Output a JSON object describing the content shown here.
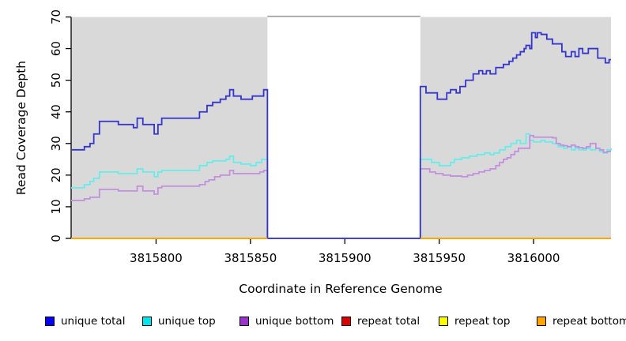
{
  "chart_data": {
    "type": "line",
    "title": "",
    "xlabel": "Coordinate in Reference Genome",
    "ylabel": "Read Coverage Depth",
    "xlim": [
      3815755,
      3816041
    ],
    "ylim": [
      0,
      70
    ],
    "x_ticks": [
      3815800,
      3815850,
      3815900,
      3815950,
      3816000
    ],
    "y_ticks": [
      0,
      10,
      20,
      30,
      40,
      50,
      60,
      70
    ],
    "grid": false,
    "plot_bg_color": "#D9D9D9",
    "gap_top_line_color": "#9C9C9C",
    "shaded_regions": [
      [
        3815755,
        3815859
      ],
      [
        3815940,
        3816041
      ]
    ],
    "gap_region": {
      "from": 3815859,
      "to": 3815940
    },
    "legend_position": "bottom",
    "legend": [
      {
        "label": "unique total",
        "color": "#0000EE"
      },
      {
        "label": "unique top",
        "color": "#00E5EE"
      },
      {
        "label": "unique bottom",
        "color": "#9933CC"
      },
      {
        "label": "repeat total",
        "color": "#DD0000"
      },
      {
        "label": "repeat top",
        "color": "#FFFF00"
      },
      {
        "label": "repeat bottom",
        "color": "#FFA500"
      }
    ],
    "series": [
      {
        "name": "repeat total",
        "line_color": "#DD0000",
        "width": 1.8,
        "segments": [
          [
            [
              3815755,
              0
            ],
            [
              3815859,
              0
            ]
          ],
          [
            [
              3815940,
              0
            ],
            [
              3816041,
              0
            ]
          ]
        ]
      },
      {
        "name": "repeat top",
        "line_color": "#FFFF00",
        "width": 1.8,
        "segments": [
          [
            [
              3815755,
              0
            ],
            [
              3815859,
              0
            ]
          ],
          [
            [
              3815940,
              0
            ],
            [
              3816041,
              0
            ]
          ]
        ]
      },
      {
        "name": "unique top",
        "line_color": "#66EDEA",
        "width": 1.8,
        "segments": [
          [
            [
              3815755,
              16
            ],
            [
              3815762,
              17
            ],
            [
              3815765,
              18
            ],
            [
              3815767,
              19
            ],
            [
              3815770,
              21
            ],
            [
              3815780,
              20.5
            ],
            [
              3815790,
              22
            ],
            [
              3815793,
              21
            ],
            [
              3815799,
              19.5
            ],
            [
              3815801,
              21
            ],
            [
              3815803,
              21.5
            ],
            [
              3815823,
              23
            ],
            [
              3815827,
              24
            ],
            [
              3815830,
              24.5
            ],
            [
              3815837,
              25
            ],
            [
              3815839,
              26
            ],
            [
              3815841,
              24
            ],
            [
              3815845,
              23.5
            ],
            [
              3815850,
              23
            ],
            [
              3815853,
              24
            ],
            [
              3815856,
              25
            ],
            [
              3815859,
              0
            ],
            [
              3815940,
              25
            ],
            [
              3815946,
              24
            ],
            [
              3815950,
              23
            ],
            [
              3815956,
              24
            ],
            [
              3815958,
              25
            ],
            [
              3815962,
              25.5
            ],
            [
              3815966,
              26
            ],
            [
              3815970,
              26.5
            ],
            [
              3815974,
              27
            ],
            [
              3815977,
              26.5
            ],
            [
              3815979,
              27
            ],
            [
              3815982,
              28
            ],
            [
              3815985,
              29
            ],
            [
              3815988,
              30
            ],
            [
              3815991,
              31
            ],
            [
              3815993,
              30
            ],
            [
              3815996,
              33
            ],
            [
              3815998,
              31
            ],
            [
              3816000,
              30.5
            ],
            [
              3816004,
              31
            ],
            [
              3816006,
              30.5
            ],
            [
              3816010,
              30
            ],
            [
              3816013,
              29
            ],
            [
              3816016,
              28.5
            ],
            [
              3816018,
              29
            ],
            [
              3816020,
              28
            ],
            [
              3816022,
              28.5
            ],
            [
              3816024,
              28
            ],
            [
              3816028,
              28.5
            ],
            [
              3816030,
              28
            ],
            [
              3816033,
              28.5
            ],
            [
              3816035,
              27.5
            ],
            [
              3816037,
              27
            ],
            [
              3816039,
              28
            ],
            [
              3816041,
              28.5
            ]
          ]
        ]
      },
      {
        "name": "unique bottom",
        "line_color": "#C38FDF",
        "width": 1.8,
        "segments": [
          [
            [
              3815755,
              12
            ],
            [
              3815762,
              12.5
            ],
            [
              3815765,
              13
            ],
            [
              3815770,
              15.5
            ],
            [
              3815780,
              15
            ],
            [
              3815790,
              16.5
            ],
            [
              3815793,
              15
            ],
            [
              3815799,
              14
            ],
            [
              3815801,
              16
            ],
            [
              3815803,
              16.5
            ],
            [
              3815823,
              17
            ],
            [
              3815826,
              18
            ],
            [
              3815828,
              18.5
            ],
            [
              3815831,
              19.5
            ],
            [
              3815834,
              20
            ],
            [
              3815839,
              21.5
            ],
            [
              3815841,
              20.5
            ],
            [
              3815850,
              20.5
            ],
            [
              3815855,
              21
            ],
            [
              3815857,
              21.5
            ],
            [
              3815859,
              0
            ],
            [
              3815940,
              22
            ],
            [
              3815945,
              21
            ],
            [
              3815948,
              20.5
            ],
            [
              3815952,
              20
            ],
            [
              3815956,
              19.7
            ],
            [
              3815962,
              19.5
            ],
            [
              3815965,
              20
            ],
            [
              3815968,
              20.5
            ],
            [
              3815971,
              21
            ],
            [
              3815974,
              21.5
            ],
            [
              3815977,
              22
            ],
            [
              3815980,
              23
            ],
            [
              3815982,
              24
            ],
            [
              3815984,
              25
            ],
            [
              3815986,
              25.5
            ],
            [
              3815988,
              26.5
            ],
            [
              3815990,
              27.5
            ],
            [
              3815992,
              28.5
            ],
            [
              3815998,
              32.5
            ],
            [
              3816000,
              32
            ],
            [
              3816010,
              31.8
            ],
            [
              3816012,
              30
            ],
            [
              3816014,
              29.5
            ],
            [
              3816016,
              29.3
            ],
            [
              3816018,
              29
            ],
            [
              3816020,
              29.5
            ],
            [
              3816022,
              29
            ],
            [
              3816024,
              28.7
            ],
            [
              3816026,
              28.5
            ],
            [
              3816028,
              29
            ],
            [
              3816030,
              30
            ],
            [
              3816033,
              28.5
            ],
            [
              3816035,
              28
            ],
            [
              3816037,
              27.2
            ],
            [
              3816039,
              27.5
            ],
            [
              3816041,
              27.5
            ]
          ]
        ]
      },
      {
        "name": "unique total",
        "line_color": "#3535CE",
        "width": 1.8,
        "segments": [
          [
            [
              3815755,
              28
            ],
            [
              3815762,
              29
            ],
            [
              3815765,
              30
            ],
            [
              3815767,
              33
            ],
            [
              3815770,
              37
            ],
            [
              3815780,
              36
            ],
            [
              3815788,
              35
            ],
            [
              3815790,
              38
            ],
            [
              3815793,
              36
            ],
            [
              3815799,
              33
            ],
            [
              3815801,
              36
            ],
            [
              3815803,
              38
            ],
            [
              3815823,
              40
            ],
            [
              3815827,
              42
            ],
            [
              3815830,
              43
            ],
            [
              3815834,
              44
            ],
            [
              3815837,
              45
            ],
            [
              3815839,
              47
            ],
            [
              3815841,
              45
            ],
            [
              3815845,
              44
            ],
            [
              3815851,
              45
            ],
            [
              3815857,
              47
            ],
            [
              3815859,
              0
            ],
            [
              3815940,
              48
            ],
            [
              3815943,
              46
            ],
            [
              3815949,
              44
            ],
            [
              3815954,
              46
            ],
            [
              3815956,
              47
            ],
            [
              3815959,
              46
            ],
            [
              3815961,
              48
            ],
            [
              3815964,
              50
            ],
            [
              3815968,
              52
            ],
            [
              3815971,
              53
            ],
            [
              3815973,
              52
            ],
            [
              3815975,
              53
            ],
            [
              3815977,
              52
            ],
            [
              3815980,
              54
            ],
            [
              3815984,
              55
            ],
            [
              3815987,
              56
            ],
            [
              3815989,
              57
            ],
            [
              3815991,
              58
            ],
            [
              3815993,
              59
            ],
            [
              3815995,
              60
            ],
            [
              3815996,
              61
            ],
            [
              3815998,
              60
            ],
            [
              3815999,
              65
            ],
            [
              3816001,
              63.5
            ],
            [
              3816002,
              65
            ],
            [
              3816004,
              64.5
            ],
            [
              3816007,
              63
            ],
            [
              3816010,
              61.5
            ],
            [
              3816015,
              59
            ],
            [
              3816017,
              57.5
            ],
            [
              3816020,
              59
            ],
            [
              3816022,
              57.5
            ],
            [
              3816024,
              60
            ],
            [
              3816026,
              58.5
            ],
            [
              3816029,
              60
            ],
            [
              3816034,
              57
            ],
            [
              3816038,
              55.5
            ],
            [
              3816040,
              56.5
            ],
            [
              3816041,
              56.5
            ]
          ]
        ]
      },
      {
        "name": "repeat bottom",
        "line_color": "#FFA500",
        "width": 2.1,
        "segments": [
          [
            [
              3815755,
              0
            ],
            [
              3815859,
              0
            ]
          ],
          [
            [
              3815940,
              0
            ],
            [
              3816041,
              0
            ]
          ]
        ]
      }
    ]
  }
}
